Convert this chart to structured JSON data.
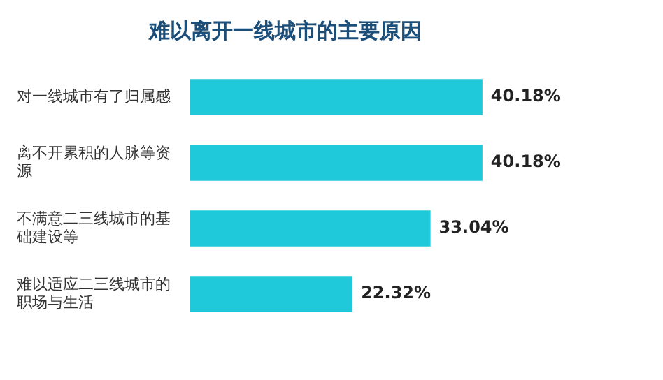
{
  "chart_data": {
    "type": "bar",
    "orientation": "horizontal",
    "title": "难以离开一线城市的主要原因",
    "categories": [
      "对一线城市有了归属感",
      "离不开累积的人脉等资源",
      "不满意二三线城市的基础建设等",
      "难以适应二三线城市的职场与生活"
    ],
    "values": [
      40.18,
      40.18,
      33.04,
      22.32
    ],
    "color": "#1fc9d9",
    "data_labels": true,
    "value_labels": [
      "40.18%",
      "40.18%",
      "33.04%",
      "22.32%"
    ],
    "legend": false,
    "tick_labels": "y"
  }
}
